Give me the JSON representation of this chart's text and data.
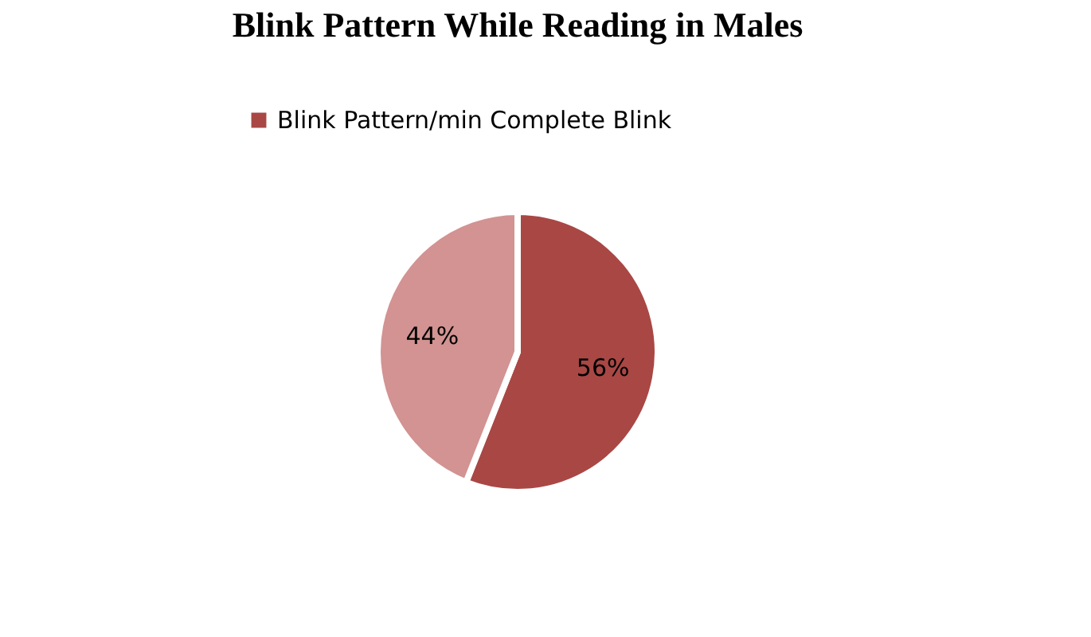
{
  "chart_data": {
    "type": "pie",
    "title": "Blink Pattern While Reading in Males",
    "categories": [
      "Blink Pattern/min Complete Blink",
      null
    ],
    "values": [
      56,
      44
    ],
    "colors": [
      "#a94745",
      "#d29392"
    ],
    "value_labels": [
      "56%",
      "44%"
    ],
    "legend": "top"
  }
}
